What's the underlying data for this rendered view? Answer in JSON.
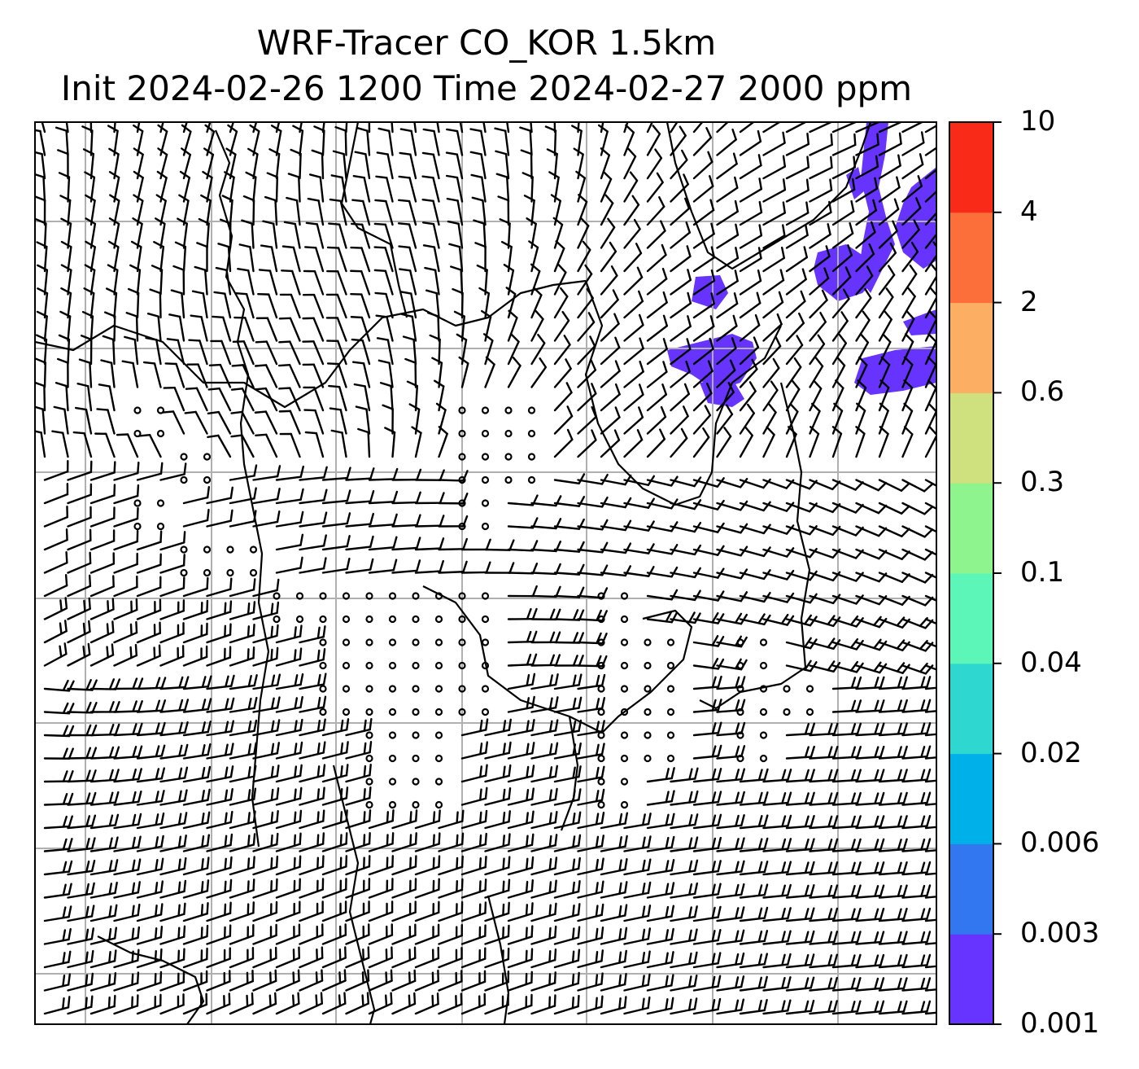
{
  "title": {
    "line1": "WRF-Tracer CO_KOR 1.5km",
    "line2": "Init 2024-02-26 1200 Time 2024-02-27 2000 ppm"
  },
  "colorbar": {
    "ticks": [
      "0.001",
      "0.003",
      "0.006",
      "0.02",
      "0.04",
      "0.1",
      "0.3",
      "0.6",
      "2",
      "4",
      "10"
    ],
    "colors": [
      "#6633ff",
      "#3377f0",
      "#00b0e8",
      "#2ed8d0",
      "#5cf7b8",
      "#8ef58e",
      "#cfe07e",
      "#fcae62",
      "#fd6f3a",
      "#fa2a18"
    ]
  },
  "map": {
    "tracer_color": "#6633ff",
    "gridline_color": "#b0b0b0",
    "wind_barb_color": "#000000",
    "coastline_color": "#000000"
  }
}
